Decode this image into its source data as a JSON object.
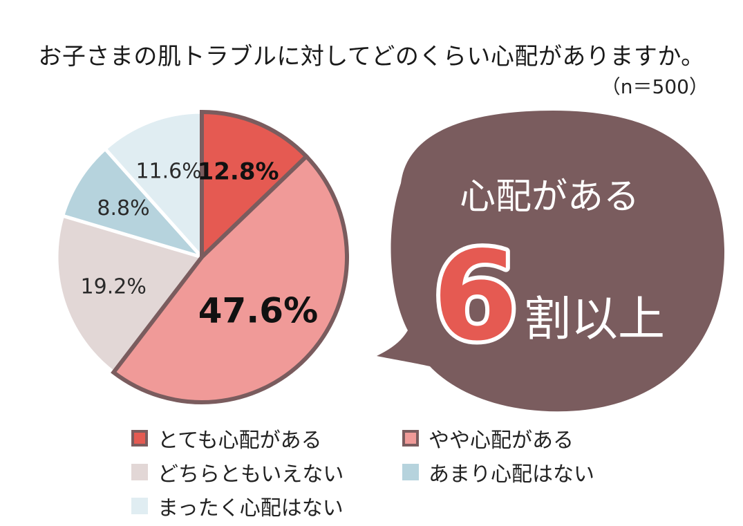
{
  "title": "お子さまの肌トラブルに対してどのくらい心配がありますか。",
  "subtitle": "（n＝500）",
  "colors": {
    "outline": "#7a5c5e",
    "bubble": "#7a5c5e",
    "highlight_number": "#e55a52"
  },
  "chart_data": {
    "type": "pie",
    "title": "お子さまの肌トラブルに対してどのくらい心配がありますか。",
    "n_label": "（n＝500）",
    "start_angle_deg": 0,
    "direction": "clockwise",
    "slices": [
      {
        "label": "とても心配がある",
        "value": 12.8,
        "value_label": "12.8%",
        "color": "#e55a52",
        "emphasized": true
      },
      {
        "label": "やや心配がある",
        "value": 47.6,
        "value_label": "47.6%",
        "color": "#f09a98",
        "emphasized": true
      },
      {
        "label": "どちらともいえない",
        "value": 19.2,
        "value_label": "19.2%",
        "color": "#e2d7d6",
        "emphasized": false
      },
      {
        "label": "あまり心配はない",
        "value": 8.8,
        "value_label": "8.8%",
        "color": "#b6d3dd",
        "emphasized": false
      },
      {
        "label": "まったく心配はない",
        "value": 11.6,
        "value_label": "11.6%",
        "color": "#e0edf2",
        "emphasized": false
      }
    ]
  },
  "callout": {
    "line1": "心配がある",
    "number": "6",
    "line2": "割以上"
  },
  "legend": [
    {
      "label": "とても心配がある",
      "color": "#e55a52",
      "bordered": true
    },
    {
      "label": "やや心配がある",
      "color": "#f09a98",
      "bordered": true
    },
    {
      "label": "どちらともいえない",
      "color": "#e2d7d6",
      "bordered": false
    },
    {
      "label": "あまり心配はない",
      "color": "#b6d3dd",
      "bordered": false
    },
    {
      "label": "まったく心配はない",
      "color": "#e0edf2",
      "bordered": false
    }
  ]
}
